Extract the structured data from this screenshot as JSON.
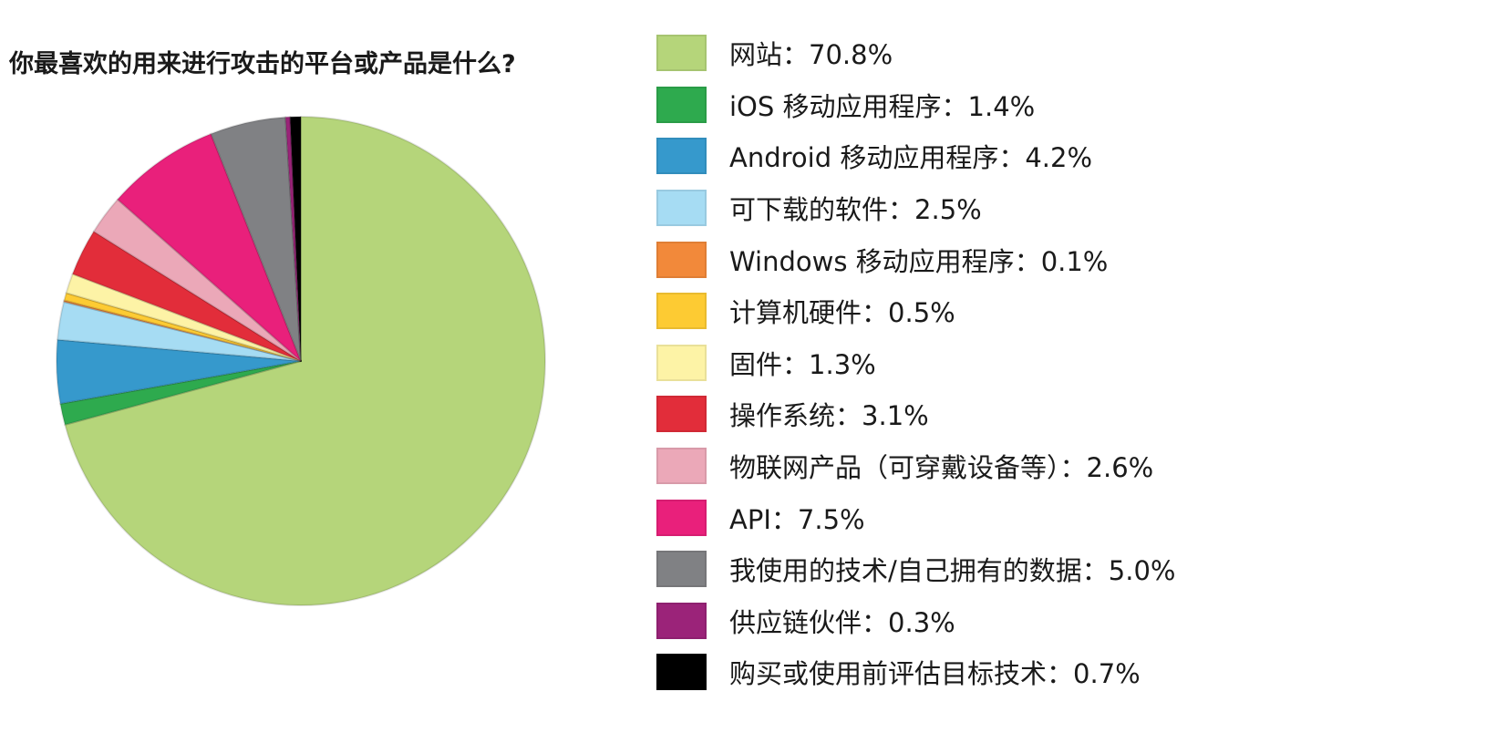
{
  "chart_data": {
    "type": "pie",
    "title": "你最喜欢的用来进行攻击的平台或产品是什么?",
    "separator": "：",
    "slices": [
      {
        "label": "网站",
        "value": 70.8,
        "display": "70.8%",
        "color": "#b5d57a"
      },
      {
        "label": "iOS 移动应用程序",
        "value": 1.4,
        "display": "1.4%",
        "color": "#2eaa4e"
      },
      {
        "label": "Android 移动应用程序",
        "value": 4.2,
        "display": "4.2%",
        "color": "#3699cc"
      },
      {
        "label": "可下载的软件",
        "value": 2.5,
        "display": "2.5%",
        "color": "#a6dcf3"
      },
      {
        "label": "Windows 移动应用程序",
        "value": 0.1,
        "display": "0.1%",
        "color": "#f2893a"
      },
      {
        "label": "计算机硬件",
        "value": 0.5,
        "display": "0.5%",
        "color": "#fdcb33"
      },
      {
        "label": "固件",
        "value": 1.3,
        "display": "1.3%",
        "color": "#fdf3a6"
      },
      {
        "label": "操作系统",
        "value": 3.1,
        "display": "3.1%",
        "color": "#e22d3a"
      },
      {
        "label": "物联网产品（可穿戴设备等）",
        "value": 2.6,
        "display": "2.6%",
        "color": "#eba8b8"
      },
      {
        "label": "API",
        "value": 7.5,
        "display": "7.5%",
        "color": "#e9207b"
      },
      {
        "label": "我使用的技术/自己拥有的数据",
        "value": 5.0,
        "display": "5.0%",
        "color": "#808184"
      },
      {
        "label": "供应链伙伴",
        "value": 0.3,
        "display": "0.3%",
        "color": "#9b2379"
      },
      {
        "label": "购买或使用前评估目标技术",
        "value": 0.7,
        "display": "0.7%",
        "color": "#000000"
      }
    ],
    "start_angle": "12 o'clock",
    "direction": "clockwise",
    "legend_position": "right"
  }
}
